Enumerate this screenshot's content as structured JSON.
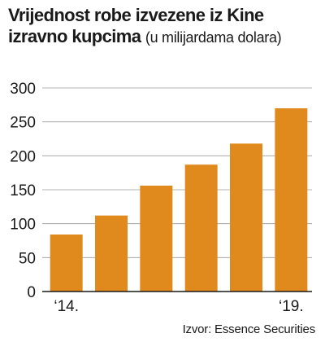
{
  "chart_data": {
    "type": "bar",
    "title": "Vrijednost robe izvezene iz Kine izravno kupcima",
    "subtitle": "(u milijardama dolara)",
    "xlabel": "",
    "ylabel": "",
    "categories": [
      "2014",
      "2015",
      "2016",
      "2017",
      "2018",
      "2019"
    ],
    "tick_labels_x": [
      "‘14.",
      "",
      "",
      "",
      "",
      "‘19."
    ],
    "values": [
      84,
      112,
      156,
      187,
      218,
      270
    ],
    "ylim": [
      0,
      300
    ],
    "yticks": [
      0,
      50,
      100,
      150,
      200,
      250,
      300
    ],
    "grid": true,
    "bar_color": "#e08a1e",
    "grid_color": "#9a9a9a",
    "source": "Izvor: Essence Securities"
  }
}
